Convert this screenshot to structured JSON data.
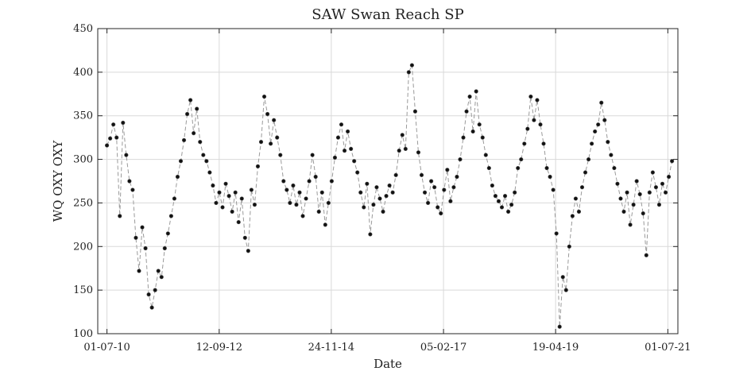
{
  "chart_data": {
    "type": "line",
    "title": "SAW Swan Reach SP",
    "xlabel": "Date",
    "ylabel": "WQ OXY OXY",
    "x_tick_labels": [
      "01-07-10",
      "12-09-12",
      "24-11-14",
      "05-02-17",
      "19-04-19",
      "01-07-21"
    ],
    "x_ticks": [
      "2010-07-01",
      "2012-09-12",
      "2014-11-24",
      "2017-02-05",
      "2019-04-19",
      "2021-07-01"
    ],
    "xlim": [
      "2010-04-26",
      "2021-09-11"
    ],
    "y_ticks": [
      100,
      150,
      200,
      250,
      300,
      350,
      400,
      450
    ],
    "ylim": [
      100,
      450
    ],
    "grid": true,
    "line_style": "dashed",
    "marker": "filled-circle",
    "colors": {
      "line": "#9a9a9a",
      "marker": "#111111",
      "grid": "#d9d9d9",
      "axis": "#262626"
    },
    "series": [
      {
        "points": [
          [
            "2010-07-01",
            316
          ],
          [
            "2010-07-24",
            324
          ],
          [
            "2010-08-16",
            340
          ],
          [
            "2010-09-08",
            325
          ],
          [
            "2010-10-01",
            235
          ],
          [
            "2010-10-24",
            342
          ],
          [
            "2010-11-16",
            305
          ],
          [
            "2010-12-09",
            275
          ],
          [
            "2011-01-01",
            265
          ],
          [
            "2011-01-24",
            210
          ],
          [
            "2011-02-16",
            172
          ],
          [
            "2011-03-11",
            222
          ],
          [
            "2011-04-03",
            198
          ],
          [
            "2011-04-26",
            145
          ],
          [
            "2011-05-19",
            130
          ],
          [
            "2011-06-11",
            150
          ],
          [
            "2011-07-04",
            172
          ],
          [
            "2011-07-27",
            165
          ],
          [
            "2011-08-19",
            198
          ],
          [
            "2011-09-11",
            215
          ],
          [
            "2011-10-04",
            235
          ],
          [
            "2011-10-27",
            255
          ],
          [
            "2011-11-19",
            280
          ],
          [
            "2011-12-12",
            298
          ],
          [
            "2012-01-04",
            322
          ],
          [
            "2012-01-27",
            352
          ],
          [
            "2012-02-19",
            368
          ],
          [
            "2012-03-13",
            330
          ],
          [
            "2012-04-05",
            358
          ],
          [
            "2012-04-28",
            320
          ],
          [
            "2012-05-21",
            305
          ],
          [
            "2012-06-13",
            298
          ],
          [
            "2012-07-06",
            285
          ],
          [
            "2012-07-29",
            270
          ],
          [
            "2012-08-21",
            250
          ],
          [
            "2012-09-13",
            262
          ],
          [
            "2012-10-06",
            245
          ],
          [
            "2012-10-29",
            272
          ],
          [
            "2012-11-21",
            258
          ],
          [
            "2012-12-14",
            240
          ],
          [
            "2013-01-06",
            262
          ],
          [
            "2013-01-29",
            228
          ],
          [
            "2013-02-21",
            255
          ],
          [
            "2013-03-16",
            210
          ],
          [
            "2013-04-08",
            195
          ],
          [
            "2013-05-01",
            265
          ],
          [
            "2013-05-24",
            248
          ],
          [
            "2013-06-16",
            292
          ],
          [
            "2013-07-09",
            320
          ],
          [
            "2013-08-01",
            372
          ],
          [
            "2013-08-24",
            352
          ],
          [
            "2013-09-16",
            318
          ],
          [
            "2013-10-09",
            345
          ],
          [
            "2013-11-01",
            325
          ],
          [
            "2013-11-24",
            305
          ],
          [
            "2013-12-17",
            275
          ],
          [
            "2014-01-09",
            265
          ],
          [
            "2014-02-01",
            250
          ],
          [
            "2014-02-24",
            270
          ],
          [
            "2014-03-19",
            248
          ],
          [
            "2014-04-11",
            262
          ],
          [
            "2014-05-04",
            235
          ],
          [
            "2014-05-27",
            255
          ],
          [
            "2014-06-19",
            275
          ],
          [
            "2014-07-12",
            305
          ],
          [
            "2014-08-04",
            280
          ],
          [
            "2014-08-27",
            240
          ],
          [
            "2014-09-19",
            262
          ],
          [
            "2014-10-12",
            225
          ],
          [
            "2014-11-04",
            250
          ],
          [
            "2014-11-27",
            275
          ],
          [
            "2014-12-20",
            302
          ],
          [
            "2015-01-12",
            325
          ],
          [
            "2015-02-04",
            340
          ],
          [
            "2015-02-27",
            310
          ],
          [
            "2015-03-22",
            332
          ],
          [
            "2015-04-14",
            312
          ],
          [
            "2015-05-07",
            298
          ],
          [
            "2015-05-30",
            285
          ],
          [
            "2015-06-22",
            262
          ],
          [
            "2015-07-15",
            245
          ],
          [
            "2015-08-07",
            272
          ],
          [
            "2015-08-30",
            214
          ],
          [
            "2015-09-22",
            248
          ],
          [
            "2015-10-15",
            268
          ],
          [
            "2015-11-07",
            255
          ],
          [
            "2015-11-30",
            240
          ],
          [
            "2015-12-23",
            258
          ],
          [
            "2016-01-15",
            270
          ],
          [
            "2016-02-07",
            262
          ],
          [
            "2016-03-01",
            282
          ],
          [
            "2016-03-24",
            310
          ],
          [
            "2016-04-16",
            328
          ],
          [
            "2016-05-09",
            312
          ],
          [
            "2016-06-01",
            400
          ],
          [
            "2016-06-24",
            408
          ],
          [
            "2016-07-17",
            355
          ],
          [
            "2016-08-09",
            308
          ],
          [
            "2016-09-01",
            282
          ],
          [
            "2016-09-24",
            262
          ],
          [
            "2016-10-17",
            250
          ],
          [
            "2016-11-09",
            275
          ],
          [
            "2016-12-02",
            268
          ],
          [
            "2016-12-25",
            245
          ],
          [
            "2017-01-17",
            238
          ],
          [
            "2017-02-09",
            265
          ],
          [
            "2017-03-04",
            288
          ],
          [
            "2017-03-27",
            252
          ],
          [
            "2017-04-19",
            268
          ],
          [
            "2017-05-12",
            280
          ],
          [
            "2017-06-04",
            300
          ],
          [
            "2017-06-27",
            325
          ],
          [
            "2017-07-20",
            355
          ],
          [
            "2017-08-12",
            372
          ],
          [
            "2017-09-04",
            332
          ],
          [
            "2017-09-27",
            378
          ],
          [
            "2017-10-20",
            340
          ],
          [
            "2017-11-12",
            325
          ],
          [
            "2017-12-05",
            305
          ],
          [
            "2017-12-28",
            290
          ],
          [
            "2018-01-20",
            270
          ],
          [
            "2018-02-12",
            258
          ],
          [
            "2018-03-07",
            252
          ],
          [
            "2018-03-30",
            245
          ],
          [
            "2018-04-22",
            258
          ],
          [
            "2018-05-15",
            240
          ],
          [
            "2018-06-07",
            248
          ],
          [
            "2018-06-30",
            262
          ],
          [
            "2018-07-23",
            290
          ],
          [
            "2018-08-15",
            300
          ],
          [
            "2018-09-07",
            318
          ],
          [
            "2018-09-30",
            335
          ],
          [
            "2018-10-23",
            372
          ],
          [
            "2018-11-15",
            345
          ],
          [
            "2018-12-08",
            368
          ],
          [
            "2018-12-31",
            340
          ],
          [
            "2019-01-23",
            318
          ],
          [
            "2019-02-15",
            290
          ],
          [
            "2019-03-10",
            280
          ],
          [
            "2019-04-02",
            265
          ],
          [
            "2019-04-25",
            215
          ],
          [
            "2019-05-18",
            108
          ],
          [
            "2019-06-10",
            165
          ],
          [
            "2019-07-03",
            150
          ],
          [
            "2019-07-26",
            200
          ],
          [
            "2019-08-18",
            235
          ],
          [
            "2019-09-10",
            255
          ],
          [
            "2019-10-03",
            240
          ],
          [
            "2019-10-26",
            268
          ],
          [
            "2019-11-18",
            285
          ],
          [
            "2019-12-11",
            300
          ],
          [
            "2020-01-03",
            318
          ],
          [
            "2020-01-26",
            332
          ],
          [
            "2020-02-18",
            340
          ],
          [
            "2020-03-12",
            365
          ],
          [
            "2020-04-04",
            345
          ],
          [
            "2020-04-27",
            320
          ],
          [
            "2020-05-20",
            305
          ],
          [
            "2020-06-12",
            290
          ],
          [
            "2020-07-05",
            272
          ],
          [
            "2020-07-28",
            255
          ],
          [
            "2020-08-20",
            240
          ],
          [
            "2020-09-12",
            262
          ],
          [
            "2020-10-05",
            225
          ],
          [
            "2020-10-28",
            248
          ],
          [
            "2020-11-20",
            275
          ],
          [
            "2020-12-13",
            260
          ],
          [
            "2021-01-05",
            238
          ],
          [
            "2021-01-28",
            190
          ],
          [
            "2021-02-20",
            262
          ],
          [
            "2021-03-15",
            285
          ],
          [
            "2021-04-07",
            268
          ],
          [
            "2021-04-30",
            248
          ],
          [
            "2021-05-23",
            272
          ],
          [
            "2021-06-15",
            262
          ],
          [
            "2021-07-08",
            280
          ],
          [
            "2021-07-31",
            298
          ]
        ]
      }
    ]
  }
}
